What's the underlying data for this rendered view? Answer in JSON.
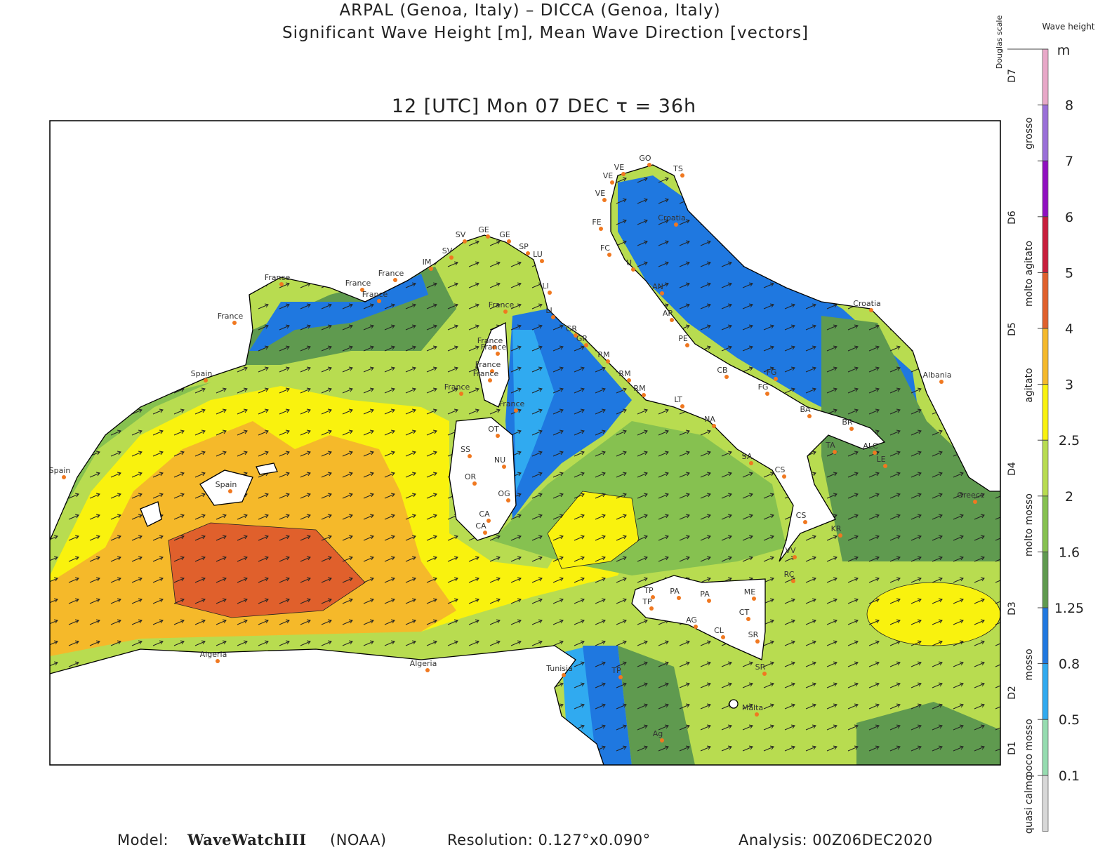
{
  "header": {
    "line1": "ARPAL (Genoa, Italy)  –  DICCA (Genoa, Italy)",
    "line2": "Significant Wave Height [m], Mean Wave Direction [vectors]",
    "time": "12 [UTC] Mon 07 DEC  τ = 36h"
  },
  "colorbar": {
    "title": "Wave height",
    "unit": "m",
    "ticks": [
      "8",
      "7",
      "6",
      "5",
      "4",
      "3",
      "2.5",
      "2",
      "1.6",
      "1.25",
      "0.8",
      "0.5",
      "0.1"
    ],
    "colors": [
      "#e8a8c8",
      "#9a6fd8",
      "#9010c0",
      "#c81e3c",
      "#e0602c",
      "#f5b92a",
      "#f9f20e",
      "#b8dc50",
      "#86c150",
      "#5f9a4f",
      "#1f78e0",
      "#30aaf0",
      "#96dcb0",
      "#d8d8d8"
    ]
  },
  "douglas": {
    "title": "Douglas scale",
    "codes": [
      "D7",
      "D6",
      "D5",
      "D4",
      "D3",
      "D2",
      "D1"
    ],
    "states": [
      "grosso",
      "molto agitato",
      "agitato",
      "molto mosso",
      "mosso",
      "poco mosso",
      "quasi calmo"
    ]
  },
  "footer": {
    "model_label": "Model:",
    "model": "WaveWatchIII",
    "agency": "(NOAA)",
    "resolution": "Resolution: 0.127°x0.090°",
    "analysis": "Analysis: 00Z06DEC2020"
  },
  "places": [
    "France",
    "France",
    "France",
    "France",
    "France",
    "Spain",
    "Spain",
    "Spain",
    "Algeria",
    "Algeria",
    "Tunisia",
    "Malta",
    "Croatia",
    "Croatia",
    "Albania",
    "Greece",
    "GE",
    "GE",
    "SV",
    "SV",
    "IM",
    "SP",
    "LU",
    "LI",
    "LI",
    "GR",
    "GR",
    "RM",
    "RM",
    "RM",
    "LT",
    "NA",
    "SA",
    "CS",
    "CS",
    "VV",
    "RC",
    "ME",
    "CT",
    "SR",
    "SR",
    "PA",
    "PA",
    "TP",
    "TP",
    "AG",
    "CL",
    "TP",
    "Ag",
    "OT",
    "SS",
    "NU",
    "OR",
    "OG",
    "CA",
    "CA",
    "VE",
    "VE",
    "VE",
    "GO",
    "TS",
    "FE",
    "FC",
    "U",
    "AN",
    "AP",
    "PE",
    "CB",
    "FG",
    "FG",
    "BA",
    "BR",
    "TA",
    "ALC",
    "LE",
    "KR",
    "France",
    "France",
    "France",
    "France",
    "France",
    "France",
    "France"
  ]
}
